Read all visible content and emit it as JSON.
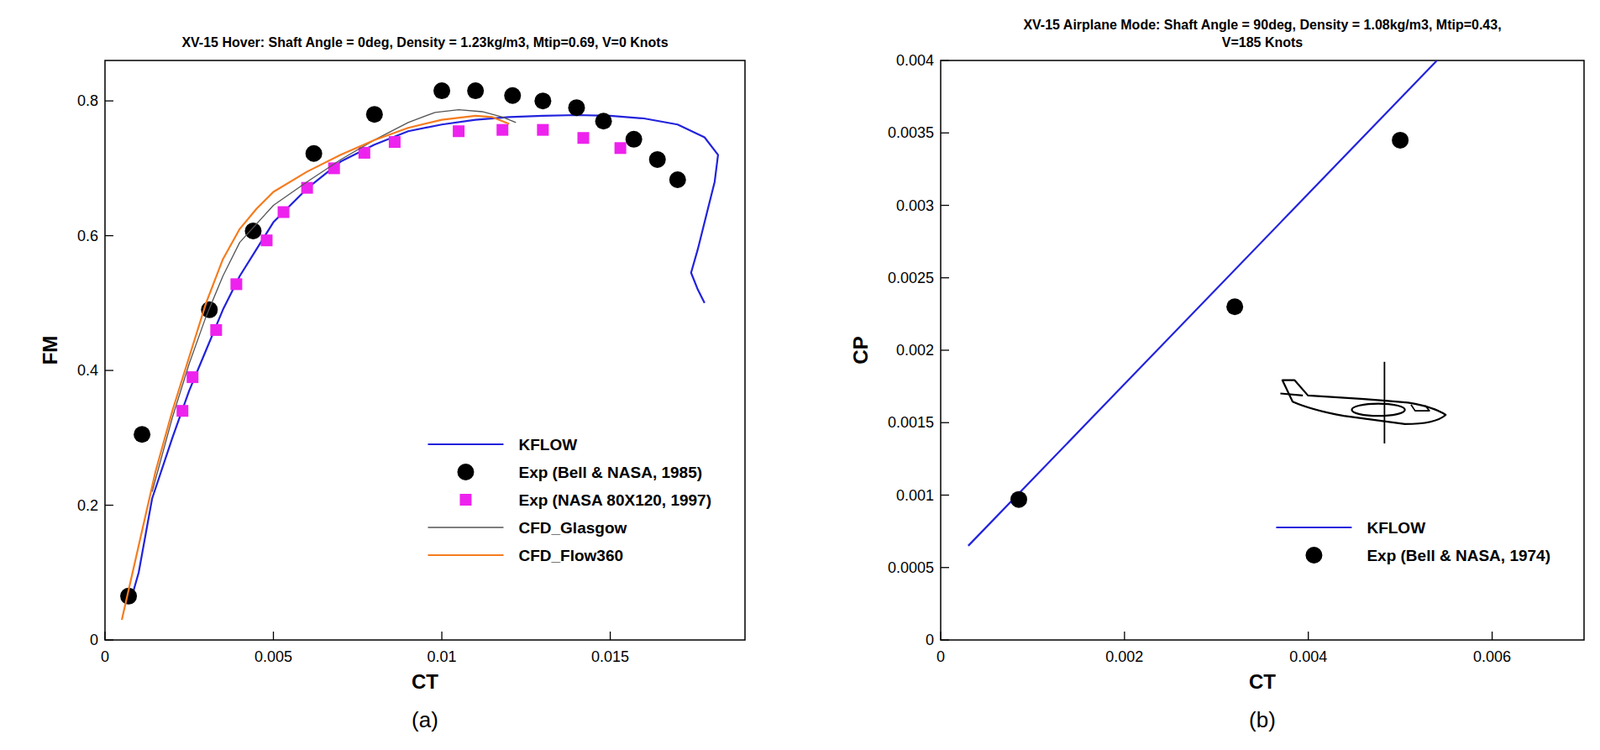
{
  "chart_data": [
    {
      "type": "line",
      "title": "XV-15 Hover: Shaft Angle = 0deg, Density = 1.23kg/m3, Mtip=0.69, V=0 Knots",
      "xlabel": "CT",
      "ylabel": "FM",
      "panel": "(a)",
      "xlim": [
        0,
        0.019
      ],
      "ylim": [
        0,
        0.86
      ],
      "xticks": [
        0,
        0.005,
        0.01,
        0.015
      ],
      "yticks": [
        0,
        0.2,
        0.4,
        0.6,
        0.8
      ],
      "legend": "lower right",
      "series": [
        {
          "name": "KFLOW",
          "type": "line",
          "line_style": "solid",
          "color": "#2222dd",
          "x": [
            0.0008,
            0.001,
            0.0014,
            0.002,
            0.0025,
            0.003,
            0.0035,
            0.004,
            0.0045,
            0.005,
            0.006,
            0.007,
            0.008,
            0.009,
            0.01,
            0.011,
            0.012,
            0.013,
            0.014,
            0.015,
            0.016,
            0.017,
            0.0178,
            0.0182,
            0.0181,
            0.0179,
            0.0176,
            0.0174,
            0.0176,
            0.0178
          ],
          "values": [
            0.065,
            0.1,
            0.21,
            0.3,
            0.37,
            0.43,
            0.49,
            0.54,
            0.58,
            0.62,
            0.67,
            0.71,
            0.735,
            0.755,
            0.765,
            0.772,
            0.776,
            0.778,
            0.779,
            0.778,
            0.774,
            0.765,
            0.746,
            0.72,
            0.68,
            0.64,
            0.58,
            0.545,
            0.52,
            0.5
          ]
        },
        {
          "name": "Exp (Bell & NASA, 1985)",
          "type": "scatter",
          "marker": "circle",
          "color": "#000000",
          "x": [
            0.0007,
            0.0011,
            0.0031,
            0.0044,
            0.0062,
            0.008,
            0.01,
            0.011,
            0.0121,
            0.013,
            0.014,
            0.0148,
            0.0157,
            0.0164,
            0.017
          ],
          "values": [
            0.065,
            0.305,
            0.49,
            0.607,
            0.722,
            0.78,
            0.815,
            0.815,
            0.808,
            0.8,
            0.79,
            0.77,
            0.743,
            0.713,
            0.683
          ]
        },
        {
          "name": "Exp (NASA 80X120, 1997)",
          "type": "scatter",
          "marker": "square",
          "color": "#ee22ee",
          "x": [
            0.0023,
            0.0026,
            0.0033,
            0.0039,
            0.0048,
            0.0053,
            0.006,
            0.0068,
            0.0077,
            0.0086,
            0.0105,
            0.0118,
            0.013,
            0.0142,
            0.0153
          ],
          "values": [
            0.34,
            0.39,
            0.46,
            0.528,
            0.593,
            0.635,
            0.671,
            0.7,
            0.723,
            0.739,
            0.755,
            0.757,
            0.757,
            0.745,
            0.73
          ]
        },
        {
          "name": "CFD_Glasgow",
          "type": "line",
          "line_style": "solid",
          "color": "#555555",
          "x": [
            0.0014,
            0.002,
            0.0025,
            0.003,
            0.0035,
            0.004,
            0.005,
            0.006,
            0.007,
            0.008,
            0.009,
            0.0098,
            0.0105,
            0.0112,
            0.0118,
            0.0122
          ],
          "values": [
            0.22,
            0.33,
            0.41,
            0.48,
            0.54,
            0.59,
            0.645,
            0.68,
            0.713,
            0.742,
            0.768,
            0.783,
            0.787,
            0.784,
            0.776,
            0.768
          ]
        },
        {
          "name": "CFD_Flow360",
          "type": "line",
          "line_style": "solid",
          "color": "#f57c1f",
          "x": [
            0.0005,
            0.001,
            0.0015,
            0.002,
            0.0025,
            0.003,
            0.0035,
            0.004,
            0.0045,
            0.005,
            0.006,
            0.007,
            0.008,
            0.009,
            0.01,
            0.011,
            0.0115,
            0.012
          ],
          "values": [
            0.03,
            0.14,
            0.25,
            0.34,
            0.42,
            0.5,
            0.565,
            0.61,
            0.64,
            0.665,
            0.695,
            0.72,
            0.742,
            0.76,
            0.772,
            0.778,
            0.776,
            0.766
          ]
        }
      ]
    },
    {
      "type": "line",
      "title": "XV-15 Airplane Mode: Shaft Angle = 90deg, Density = 1.08kg/m3, Mtip=0.43, V=185 Knots",
      "xlabel": "CT",
      "ylabel": "CP",
      "panel": "(b)",
      "xlim": [
        0,
        0.007
      ],
      "ylim": [
        0,
        0.004
      ],
      "xticks": [
        0,
        0.002,
        0.004,
        0.006
      ],
      "yticks": [
        0,
        0.0005,
        0.001,
        0.0015,
        0.002,
        0.0025,
        0.003,
        0.0035,
        0.004
      ],
      "legend": "lower right",
      "series": [
        {
          "name": "KFLOW",
          "type": "line",
          "line_style": "solid",
          "color": "#2222dd",
          "x": [
            0.0003,
            0.0054
          ],
          "values": [
            0.00065,
            0.004
          ]
        },
        {
          "name": "Exp (Bell & NASA, 1974)",
          "type": "scatter",
          "marker": "circle",
          "color": "#000000",
          "x": [
            0.00085,
            0.0032,
            0.005
          ],
          "values": [
            0.00097,
            0.0023,
            0.00345
          ]
        }
      ]
    }
  ]
}
